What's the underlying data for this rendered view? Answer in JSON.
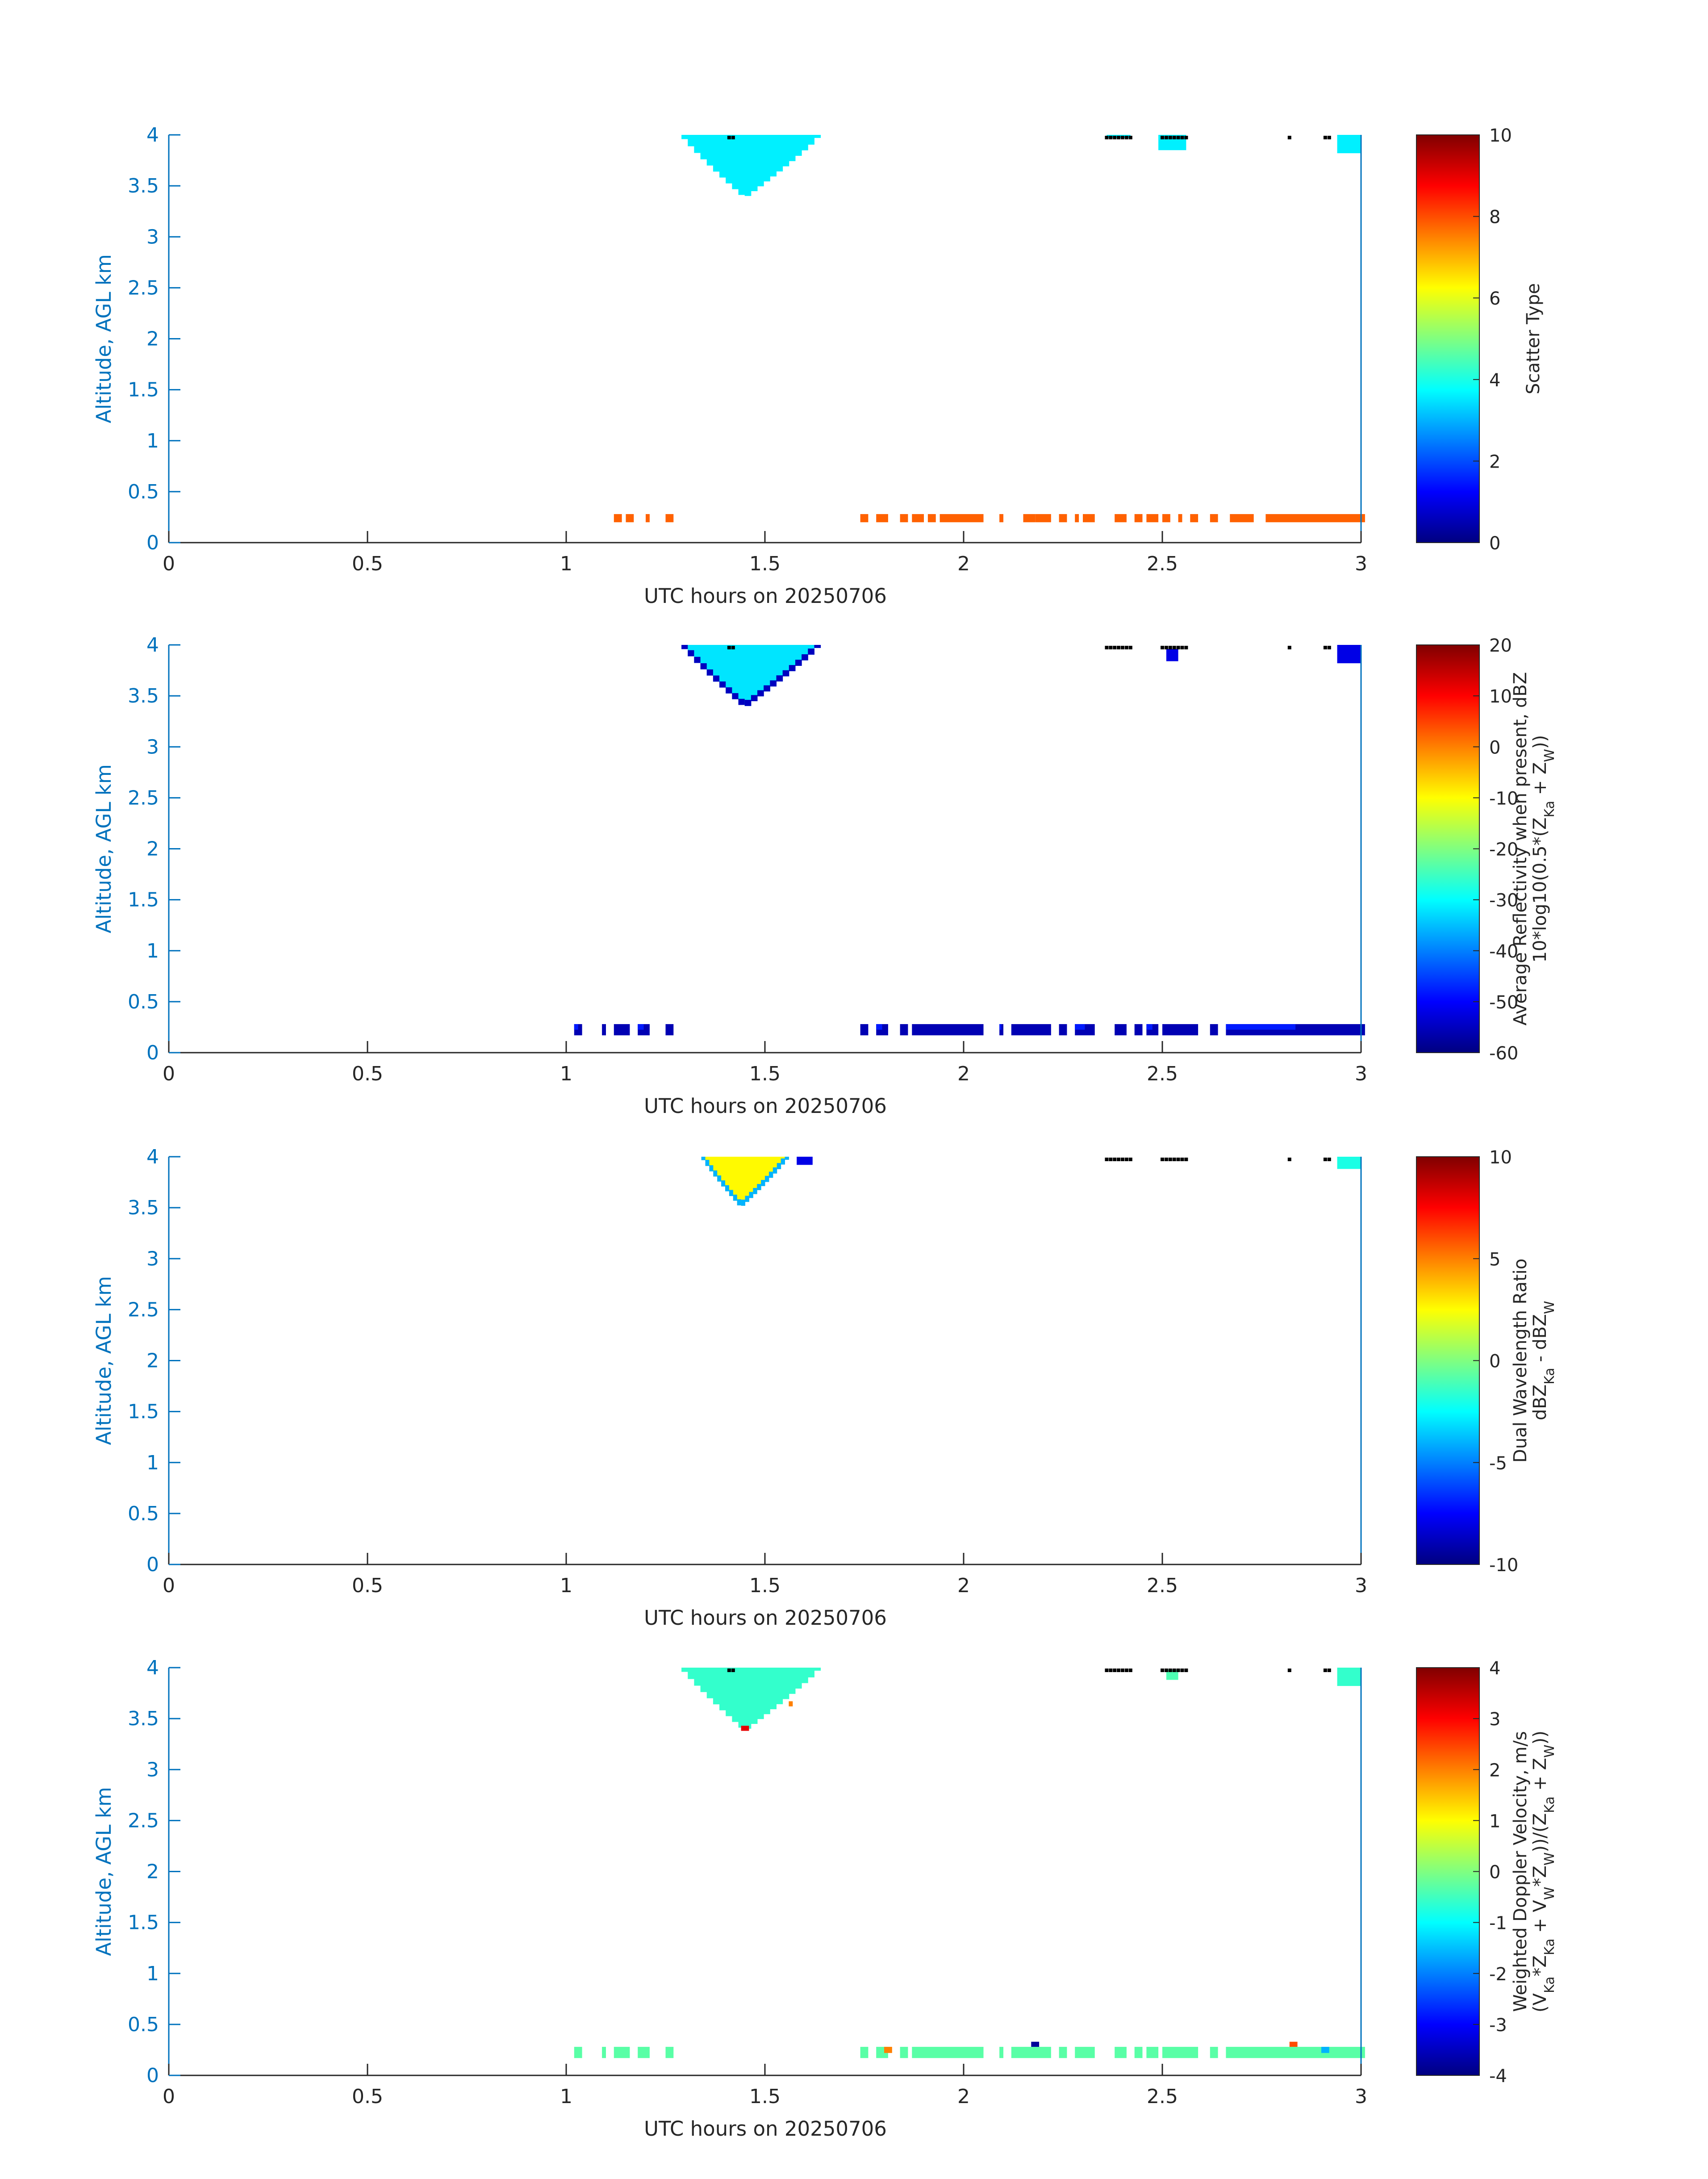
{
  "colors": {
    "axis_blue": "#0072bd",
    "text": "#262626",
    "dots": "#000000"
  },
  "colormap": "jet",
  "chart_data": [
    {
      "type": "heatmap",
      "xlabel": "UTC hours on 20250706",
      "ylabel": "Altitude, AGL km",
      "xlim": [
        0,
        3
      ],
      "ylim": [
        0,
        4
      ],
      "xticks": [
        "0",
        "0.5",
        "1",
        "1.5",
        "2",
        "2.5",
        "3"
      ],
      "yticks": [
        "0",
        "0.5",
        "1",
        "1.5",
        "2",
        "2.5",
        "3",
        "3.5",
        "4"
      ],
      "colorbar": {
        "label_lines": [
          "Scatter Type"
        ],
        "range": [
          0,
          10
        ],
        "ticks": [
          "0",
          "2",
          "4",
          "6",
          "8",
          "10"
        ]
      },
      "features": [
        {
          "kind": "cloud",
          "x": [
            1.29,
            1.64
          ],
          "top": 4.0,
          "bottom": 3.38,
          "peak_x": 1.45,
          "value": 3.6
        },
        {
          "kind": "band",
          "y": [
            0.2,
            0.28
          ],
          "value": 7.8,
          "segments": [
            [
              1.12,
              1.14
            ],
            [
              1.15,
              1.17
            ],
            [
              1.2,
              1.21
            ],
            [
              1.25,
              1.27
            ],
            [
              1.74,
              1.76
            ],
            [
              1.78,
              1.81
            ],
            [
              1.84,
              1.86
            ],
            [
              1.87,
              1.9
            ],
            [
              1.91,
              1.93
            ],
            [
              1.94,
              2.05
            ],
            [
              2.09,
              2.1
            ],
            [
              2.15,
              2.18
            ],
            [
              2.18,
              2.22
            ],
            [
              2.24,
              2.26
            ],
            [
              2.28,
              2.29
            ],
            [
              2.3,
              2.33
            ],
            [
              2.38,
              2.41
            ],
            [
              2.43,
              2.45
            ],
            [
              2.46,
              2.49
            ],
            [
              2.5,
              2.52
            ],
            [
              2.54,
              2.55
            ],
            [
              2.57,
              2.59
            ],
            [
              2.62,
              2.64
            ],
            [
              2.67,
              2.73
            ],
            [
              2.76,
              3.01
            ]
          ]
        },
        {
          "kind": "patch",
          "x": [
            2.36,
            2.42
          ],
          "y": [
            3.97,
            4.0
          ],
          "value": 3.6
        },
        {
          "kind": "patch",
          "x": [
            2.49,
            2.56
          ],
          "y": [
            3.85,
            4.0
          ],
          "value": 3.6
        },
        {
          "kind": "patch",
          "x": [
            2.94,
            3.0
          ],
          "y": [
            3.82,
            4.0
          ],
          "value": 3.6
        }
      ],
      "dots": [
        1.41,
        1.42,
        2.36,
        2.37,
        2.38,
        2.39,
        2.4,
        2.41,
        2.42,
        2.5,
        2.51,
        2.52,
        2.53,
        2.54,
        2.55,
        2.56,
        2.82,
        2.91,
        2.92
      ]
    },
    {
      "type": "heatmap",
      "xlabel": "UTC hours on 20250706",
      "ylabel": "Altitude, AGL km",
      "xlim": [
        0,
        3
      ],
      "ylim": [
        0,
        4
      ],
      "xticks": [
        "0",
        "0.5",
        "1",
        "1.5",
        "2",
        "2.5",
        "3"
      ],
      "yticks": [
        "0",
        "0.5",
        "1",
        "1.5",
        "2",
        "2.5",
        "3",
        "3.5",
        "4"
      ],
      "colorbar": {
        "label_lines": [
          "Average Reflectivity when present, dBZ",
          "10*log10(0.5*(Z_Ka + Z_W))"
        ],
        "range": [
          -60,
          20
        ],
        "ticks": [
          "-60",
          "-50",
          "-40",
          "-30",
          "-20",
          "-10",
          "0",
          "10",
          "20"
        ]
      },
      "features": [
        {
          "kind": "cloud",
          "x": [
            1.29,
            1.64
          ],
          "top": 4.0,
          "bottom": 3.38,
          "peak_x": 1.45,
          "value": -32,
          "edge_value": -55
        },
        {
          "kind": "band",
          "y": [
            0.17,
            0.28
          ],
          "value": -56,
          "segments": [
            [
              1.02,
              1.04
            ],
            [
              1.09,
              1.1
            ],
            [
              1.12,
              1.16
            ],
            [
              1.18,
              1.21
            ],
            [
              1.25,
              1.27
            ],
            [
              1.74,
              1.76
            ],
            [
              1.78,
              1.81
            ],
            [
              1.84,
              1.86
            ],
            [
              1.87,
              2.05
            ],
            [
              2.09,
              2.1
            ],
            [
              2.12,
              2.22
            ],
            [
              2.24,
              2.26
            ],
            [
              2.28,
              2.33
            ],
            [
              2.38,
              2.41
            ],
            [
              2.43,
              2.45
            ],
            [
              2.46,
              2.49
            ],
            [
              2.5,
              2.59
            ],
            [
              2.62,
              2.64
            ],
            [
              2.66,
              3.01
            ]
          ]
        },
        {
          "kind": "patch",
          "x": [
            2.51,
            2.54
          ],
          "y": [
            3.84,
            3.96
          ],
          "value": -52
        },
        {
          "kind": "patch",
          "x": [
            2.94,
            3.0
          ],
          "y": [
            3.82,
            4.0
          ],
          "value": -52
        }
      ],
      "dots": [
        1.41,
        1.42,
        2.36,
        2.37,
        2.38,
        2.39,
        2.4,
        2.41,
        2.42,
        2.5,
        2.51,
        2.52,
        2.53,
        2.54,
        2.55,
        2.56,
        2.82,
        2.91,
        2.92
      ]
    },
    {
      "type": "heatmap",
      "xlabel": "UTC hours on 20250706",
      "ylabel": "Altitude, AGL km",
      "xlim": [
        0,
        3
      ],
      "ylim": [
        0,
        4
      ],
      "xticks": [
        "0",
        "0.5",
        "1",
        "1.5",
        "2",
        "2.5",
        "3"
      ],
      "yticks": [
        "0",
        "0.5",
        "1",
        "1.5",
        "2",
        "2.5",
        "3",
        "3.5",
        "4"
      ],
      "colorbar": {
        "label_lines": [
          "Dual Wavelength Ratio",
          "dBZ_Ka - dBZ_W"
        ],
        "range": [
          -10,
          10
        ],
        "ticks": [
          "-10",
          "-5",
          "0",
          "5",
          "10"
        ]
      },
      "features": [
        {
          "kind": "cloud",
          "x": [
            1.34,
            1.56
          ],
          "top": 4.0,
          "bottom": 3.5,
          "peak_x": 1.44,
          "value": 2.6,
          "edge_value": -4
        },
        {
          "kind": "patch",
          "x": [
            1.58,
            1.62
          ],
          "y": [
            3.92,
            4.0
          ],
          "value": -8
        },
        {
          "kind": "patch",
          "x": [
            2.94,
            3.0
          ],
          "y": [
            3.88,
            4.0
          ],
          "value": -2
        }
      ],
      "dots": [
        2.36,
        2.37,
        2.38,
        2.39,
        2.4,
        2.41,
        2.42,
        2.5,
        2.51,
        2.52,
        2.53,
        2.54,
        2.55,
        2.56,
        2.82,
        2.91,
        2.92
      ]
    },
    {
      "type": "heatmap",
      "xlabel": "UTC hours on 20250706",
      "ylabel": "Altitude, AGL km",
      "xlim": [
        0,
        3
      ],
      "ylim": [
        0,
        4
      ],
      "xticks": [
        "0",
        "0.5",
        "1",
        "1.5",
        "2",
        "2.5",
        "3"
      ],
      "yticks": [
        "0",
        "0.5",
        "1",
        "1.5",
        "2",
        "2.5",
        "3",
        "3.5",
        "4"
      ],
      "colorbar": {
        "label_lines": [
          "Weighted Doppler Velocity, m/s",
          "(V_Ka*Z_Ka + V_W*Z_W))/(Z_Ka + Z_W))"
        ],
        "range": [
          -4,
          4
        ],
        "ticks": [
          "-4",
          "-3",
          "-2",
          "-1",
          "0",
          "1",
          "2",
          "3",
          "4"
        ]
      },
      "features": [
        {
          "kind": "cloud",
          "x": [
            1.29,
            1.64
          ],
          "top": 4.0,
          "bottom": 3.38,
          "peak_x": 1.45,
          "value": -0.6
        },
        {
          "kind": "band",
          "y": [
            0.17,
            0.28
          ],
          "value": -0.3,
          "segments": [
            [
              1.02,
              1.04
            ],
            [
              1.09,
              1.1
            ],
            [
              1.12,
              1.16
            ],
            [
              1.18,
              1.21
            ],
            [
              1.25,
              1.27
            ],
            [
              1.74,
              1.76
            ],
            [
              1.78,
              1.81
            ],
            [
              1.84,
              1.86
            ],
            [
              1.87,
              2.05
            ],
            [
              2.09,
              2.1
            ],
            [
              2.12,
              2.22
            ],
            [
              2.24,
              2.26
            ],
            [
              2.28,
              2.33
            ],
            [
              2.38,
              2.41
            ],
            [
              2.43,
              2.45
            ],
            [
              2.46,
              2.49
            ],
            [
              2.5,
              2.59
            ],
            [
              2.62,
              2.64
            ],
            [
              2.66,
              3.01
            ]
          ]
        },
        {
          "kind": "patch",
          "x": [
            2.51,
            2.54
          ],
          "y": [
            3.88,
            3.98
          ],
          "value": -0.4
        },
        {
          "kind": "patch",
          "x": [
            2.94,
            3.0
          ],
          "y": [
            3.82,
            4.0
          ],
          "value": -0.6
        },
        {
          "kind": "cell",
          "x": [
            1.44,
            1.46
          ],
          "y": [
            3.38,
            3.43
          ],
          "value": 3.2
        },
        {
          "kind": "cell",
          "x": [
            1.56,
            1.57
          ],
          "y": [
            3.62,
            3.67
          ],
          "value": 2.0
        },
        {
          "kind": "cell",
          "x": [
            1.8,
            1.82
          ],
          "y": [
            0.22,
            0.28
          ],
          "value": 2.0
        },
        {
          "kind": "cell",
          "x": [
            2.17,
            2.19
          ],
          "y": [
            0.28,
            0.33
          ],
          "value": -3.8
        },
        {
          "kind": "cell",
          "x": [
            2.82,
            2.84
          ],
          "y": [
            0.28,
            0.33
          ],
          "value": 2.4
        },
        {
          "kind": "cell",
          "x": [
            2.9,
            2.92
          ],
          "y": [
            0.22,
            0.28
          ],
          "value": -1.6
        }
      ],
      "dots": [
        1.41,
        1.42,
        2.36,
        2.37,
        2.38,
        2.39,
        2.4,
        2.41,
        2.42,
        2.5,
        2.51,
        2.52,
        2.53,
        2.54,
        2.55,
        2.56,
        2.82,
        2.91,
        2.92
      ]
    }
  ]
}
